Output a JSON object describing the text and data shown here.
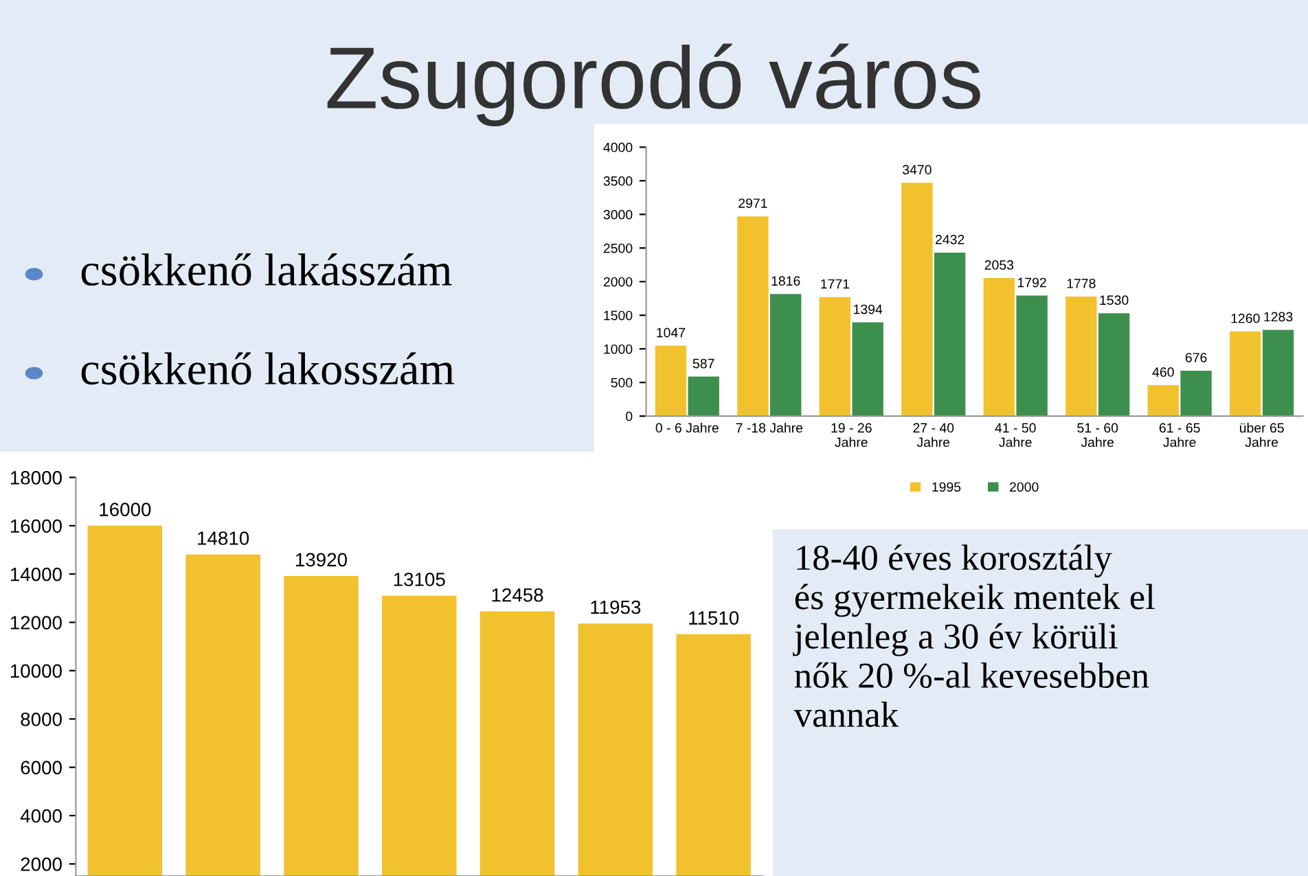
{
  "chart_data": [
    {
      "type": "other",
      "title": "Zsugorodó város",
      "annotations": [
        "csökkenő lakásszám",
        "csökkenő lakosszám",
        "18-40 éves korosztály\nés gyermekeik mentek el\njelenleg a 30 év körüli\nnők 20 %-al kevesebben\nvannak"
      ]
    },
    {
      "type": "bar",
      "categories": [
        "0 - 6 Jahre",
        "7 -18 Jahre",
        "19 - 26\nJahre",
        "27 - 40\nJahre",
        "41 - 50\nJahre",
        "51 - 60\nJahre",
        "61 - 65\nJahre",
        "über 65\nJahre"
      ],
      "series": [
        {
          "name": "1995",
          "color": "#f2c12e",
          "values": [
            1047,
            2971,
            1771,
            3470,
            2053,
            1778,
            460,
            1260
          ]
        },
        {
          "name": "2000",
          "color": "#3d8f4e",
          "values": [
            587,
            1816,
            1394,
            2432,
            1792,
            1530,
            676,
            1283
          ]
        }
      ],
      "ylim": [
        0,
        4000
      ],
      "yticks": [
        0,
        500,
        1000,
        1500,
        2000,
        2500,
        3000,
        3500,
        4000
      ],
      "data_labels": true,
      "legend": "bottom",
      "grid": false
    },
    {
      "type": "bar",
      "categories": [
        null,
        null,
        null,
        null,
        null,
        null,
        null
      ],
      "series": [
        {
          "color": "#f2c12e",
          "values": [
            16000,
            14810,
            13920,
            13105,
            12458,
            11953,
            11510
          ]
        }
      ],
      "ylim": [
        1500,
        18000
      ],
      "yticks": [
        2000,
        4000,
        6000,
        8000,
        10000,
        12000,
        14000,
        16000,
        18000
      ],
      "data_labels": true,
      "grid": false
    }
  ]
}
